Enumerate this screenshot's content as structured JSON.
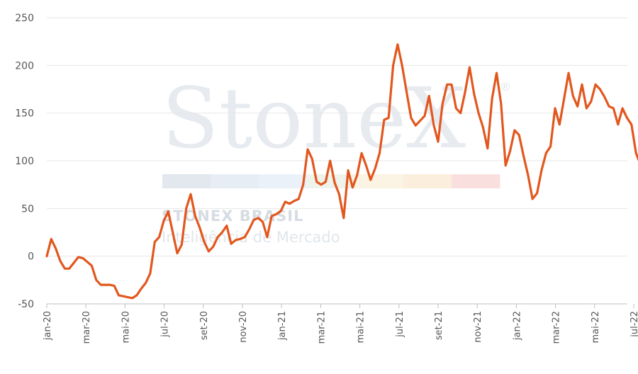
{
  "watermark": {
    "brand": "StoneX",
    "registered": "®",
    "line1": "STONEX BRASIL",
    "line2": "Inteligência de Mercado",
    "band_colors": [
      "#e3e8ee",
      "#e6edf5",
      "#ebf1f8",
      "#eef4ec",
      "#fbf3e3",
      "#fbeedd",
      "#f9e0df"
    ]
  },
  "chart_data": {
    "type": "line",
    "title": "",
    "xlabel": "",
    "ylabel": "",
    "ylim": [
      -50,
      250
    ],
    "yticks": [
      -50,
      0,
      50,
      100,
      150,
      200,
      250
    ],
    "xticks": [
      "jan-20",
      "mar-20",
      "mai-20",
      "jul-20",
      "set-20",
      "nov-20",
      "jan-21",
      "mar-21",
      "mai-21",
      "jul-21",
      "set-21",
      "nov-21",
      "jan-22",
      "mar-22",
      "mai-22",
      "jul-22"
    ],
    "grid": true,
    "legend": "none",
    "line_color": "#e2571e",
    "series": [
      {
        "values": [
          0,
          18,
          8,
          -5,
          -13,
          -13,
          -7,
          -1,
          -2,
          -6,
          -10,
          -25,
          -30,
          -30,
          -30,
          -31,
          -41,
          -42,
          -43,
          -44,
          -41,
          -34,
          -28,
          -18,
          15,
          20,
          37,
          47,
          25,
          3,
          12,
          50,
          65,
          42,
          30,
          15,
          5,
          10,
          20,
          25,
          32,
          13,
          17,
          18,
          20,
          28,
          38,
          40,
          36,
          20,
          42,
          44,
          47,
          57,
          55,
          58,
          60,
          75,
          112,
          102,
          78,
          75,
          78,
          100,
          77,
          65,
          40,
          90,
          72,
          85,
          108,
          95,
          80,
          92,
          108,
          143,
          145,
          200,
          222,
          200,
          172,
          145,
          137,
          142,
          147,
          168,
          138,
          120,
          160,
          180,
          180,
          155,
          150,
          172,
          198,
          170,
          150,
          135,
          113,
          165,
          192,
          160,
          95,
          110,
          132,
          127,
          105,
          85,
          60,
          66,
          90,
          108,
          115,
          155,
          138,
          165,
          192,
          168,
          157,
          180,
          155,
          162,
          180,
          175,
          167,
          157,
          155,
          138,
          155,
          145,
          138,
          108,
          96,
          108
        ]
      }
    ]
  }
}
